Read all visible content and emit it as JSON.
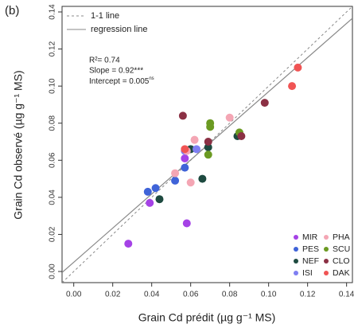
{
  "chart_data": {
    "type": "scatter",
    "panel_label": "(b)",
    "x_label": "Grain Cd prédit (µg g⁻¹ MS)",
    "y_label": "Grain Cd observé (µg g⁻¹ MS)",
    "xlim": [
      -0.006,
      0.143
    ],
    "ylim": [
      -0.006,
      0.143
    ],
    "xticks": [
      {
        "value": 0,
        "label": "0.00"
      },
      {
        "value": 0.02,
        "label": "0.02"
      },
      {
        "value": 0.04,
        "label": "0.04"
      },
      {
        "value": 0.06,
        "label": "0.06"
      },
      {
        "value": 0.08,
        "label": "0.08"
      },
      {
        "value": 0.1,
        "label": "0.10"
      },
      {
        "value": 0.12,
        "label": "0.12"
      },
      {
        "value": 0.14,
        "label": "0.14"
      }
    ],
    "yticks": [
      {
        "value": 0,
        "label": "0.00"
      },
      {
        "value": 0.02,
        "label": "0.02"
      },
      {
        "value": 0.04,
        "label": "0.04"
      },
      {
        "value": 0.06,
        "label": "0.06"
      },
      {
        "value": 0.08,
        "label": "0.08"
      },
      {
        "value": 0.1,
        "label": "0.10"
      },
      {
        "value": 0.12,
        "label": "0.12"
      },
      {
        "value": 0.14,
        "label": "0.14"
      }
    ],
    "line_legend": [
      "1-1 line",
      "regression line"
    ],
    "regression": {
      "slope": 0.92,
      "intercept": 0.005
    },
    "annotations": [
      "R²= 0.74",
      "Slope = 0.92***",
      "Intercept = 0.005",
      "ns"
    ],
    "series": [
      {
        "name": "MIR",
        "color": "#a542e6",
        "x": [
          0.028,
          0.058,
          0.039,
          0.057
        ],
        "values": [
          0.015,
          0.026,
          0.037,
          0.061
        ]
      },
      {
        "name": "PES",
        "color": "#3f63d8",
        "x": [
          0.038,
          0.042,
          0.052,
          0.057
        ],
        "values": [
          0.043,
          0.045,
          0.049,
          0.056
        ]
      },
      {
        "name": "NEF",
        "color": "#1e4a40",
        "x": [
          0.044,
          0.066,
          0.06,
          0.069,
          0.084
        ],
        "values": [
          0.039,
          0.05,
          0.066,
          0.067,
          0.073
        ]
      },
      {
        "name": "ISI",
        "color": "#7f7ff2",
        "x": [
          0.057,
          0.063
        ],
        "values": [
          0.065,
          0.066
        ]
      },
      {
        "name": "PHA",
        "color": "#f4a6b4",
        "x": [
          0.052,
          0.06,
          0.08,
          0.058,
          0.062
        ],
        "values": [
          0.053,
          0.048,
          0.083,
          0.065,
          0.071
        ]
      },
      {
        "name": "SCU",
        "color": "#6b9a22",
        "x": [
          0.07,
          0.07,
          0.069,
          0.085
        ],
        "values": [
          0.08,
          0.078,
          0.063,
          0.075
        ]
      },
      {
        "name": "CLO",
        "color": "#8b3044",
        "x": [
          0.056,
          0.069,
          0.098,
          0.086
        ],
        "values": [
          0.084,
          0.07,
          0.091,
          0.073
        ]
      },
      {
        "name": "DAK",
        "color": "#f05454",
        "x": [
          0.115,
          0.112,
          0.057
        ],
        "values": [
          0.11,
          0.1,
          0.066
        ]
      }
    ]
  }
}
